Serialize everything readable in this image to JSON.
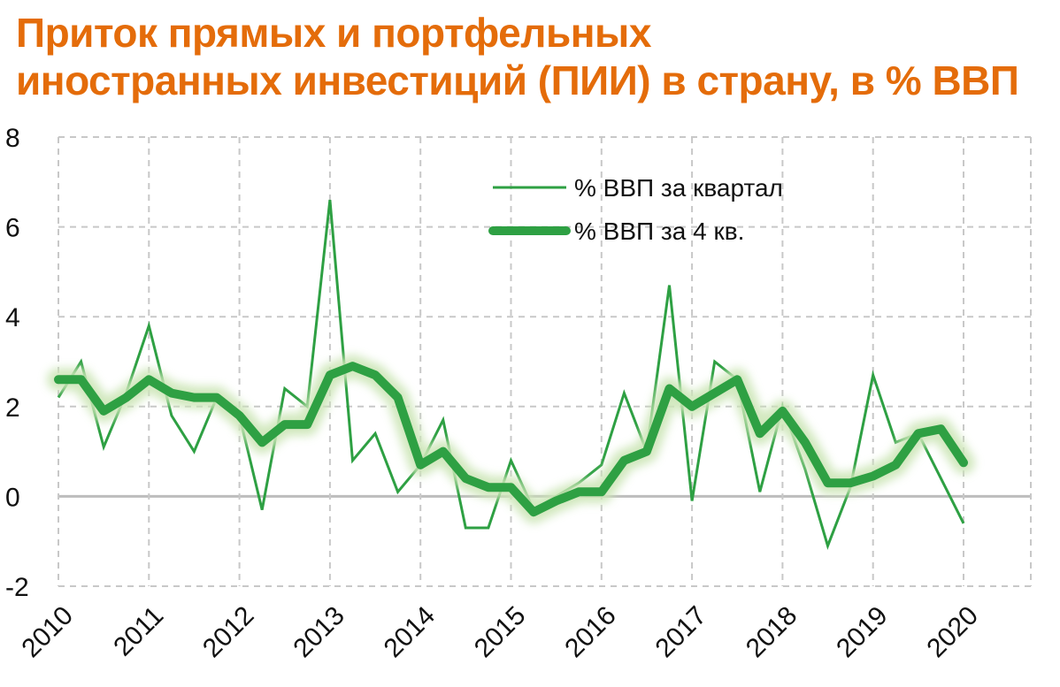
{
  "title": {
    "line1": "Приток прямых и портфельных",
    "line2": "иностранных инвестиций (ПИИ) в страну, в % ВВП"
  },
  "colors": {
    "title": "#e46c0a",
    "series": "#2ea043",
    "glow": "#cde6b8",
    "grid": "#c8c8c8",
    "zero_line": "#bdbdbd"
  },
  "chart_data": {
    "type": "line",
    "title": "Приток прямых и портфельных иностранных инвестиций (ПИИ) в страну, в % ВВП",
    "xlabel": "",
    "ylabel": "",
    "ylim": [
      -2,
      8
    ],
    "yticks": [
      "8",
      "6",
      "4",
      "2",
      "0",
      "-2"
    ],
    "xticks": [
      "2010",
      "2011",
      "2012",
      "2013",
      "2014",
      "2015",
      "2016",
      "2017",
      "2018",
      "2019",
      "2020"
    ],
    "grid": true,
    "legend": "top-right",
    "x_start_year": 2010,
    "series": [
      {
        "name": "% ВВП за квартал",
        "style": "thin",
        "values": [
          2.2,
          3.0,
          1.1,
          2.3,
          3.8,
          1.8,
          1.0,
          2.2,
          1.8,
          -0.3,
          2.4,
          2.0,
          6.6,
          0.8,
          1.4,
          0.1,
          0.7,
          1.7,
          -0.7,
          -0.7,
          0.8,
          -0.3,
          0.0,
          0.3,
          0.7,
          2.3,
          1.0,
          4.7,
          -0.1,
          3.0,
          2.6,
          0.1,
          2.0,
          0.6,
          -1.1,
          0.2,
          2.7,
          1.2,
          1.4,
          0.4,
          -0.6
        ]
      },
      {
        "name": "% ВВП за 4 кв.",
        "style": "thick",
        "values": [
          2.6,
          2.6,
          1.9,
          2.2,
          2.6,
          2.3,
          2.2,
          2.2,
          1.8,
          1.2,
          1.6,
          1.6,
          2.7,
          2.9,
          2.7,
          2.2,
          0.7,
          1.0,
          0.4,
          0.2,
          0.2,
          -0.35,
          -0.1,
          0.1,
          0.1,
          0.8,
          1.0,
          2.4,
          2.0,
          2.3,
          2.6,
          1.4,
          1.9,
          1.2,
          0.3,
          0.3,
          0.45,
          0.7,
          1.4,
          1.5,
          0.75
        ]
      }
    ]
  }
}
